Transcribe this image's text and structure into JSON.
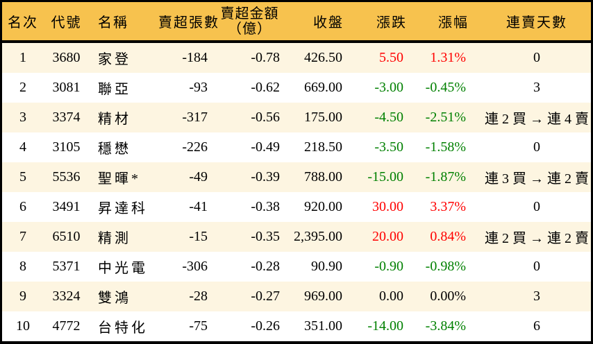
{
  "colors": {
    "header_bg": "#F7C24E",
    "stripe_bg": "#FDF5E1",
    "row_bg": "#FFFFFF",
    "border": "#000000",
    "text": "#000000",
    "up": "#FF0000",
    "down": "#008000",
    "flat": "#000000"
  },
  "chart_data": {
    "type": "table",
    "headers": [
      {
        "label": "名次"
      },
      {
        "label": "代號"
      },
      {
        "label": "名稱"
      },
      {
        "label": "賣超張數"
      },
      {
        "label": "賣超金額",
        "sub": "（億）"
      },
      {
        "label": "收盤"
      },
      {
        "label": "漲跌"
      },
      {
        "label": "漲幅"
      },
      {
        "label": "連賣天數"
      }
    ],
    "rows": [
      {
        "rank": "1",
        "code": "3680",
        "name": "家登",
        "sell_volume": "-184",
        "sell_amount": "-0.78",
        "close": "426.50",
        "change": "5.50",
        "change_pct": "1.31%",
        "streak": "0",
        "trend": "up"
      },
      {
        "rank": "2",
        "code": "3081",
        "name": "聯亞",
        "sell_volume": "-93",
        "sell_amount": "-0.62",
        "close": "669.00",
        "change": "-3.00",
        "change_pct": "-0.45%",
        "streak": "3",
        "trend": "down"
      },
      {
        "rank": "3",
        "code": "3374",
        "name": "精材",
        "sell_volume": "-317",
        "sell_amount": "-0.56",
        "close": "175.00",
        "change": "-4.50",
        "change_pct": "-2.51%",
        "streak": "連 2 買 → 連 4 賣",
        "trend": "down"
      },
      {
        "rank": "4",
        "code": "3105",
        "name": "穩懋",
        "sell_volume": "-226",
        "sell_amount": "-0.49",
        "close": "218.50",
        "change": "-3.50",
        "change_pct": "-1.58%",
        "streak": "0",
        "trend": "down"
      },
      {
        "rank": "5",
        "code": "5536",
        "name": "聖暉*",
        "sell_volume": "-49",
        "sell_amount": "-0.39",
        "close": "788.00",
        "change": "-15.00",
        "change_pct": "-1.87%",
        "streak": "連 3 買 → 連 2 賣",
        "trend": "down"
      },
      {
        "rank": "6",
        "code": "3491",
        "name": "昇達科",
        "sell_volume": "-41",
        "sell_amount": "-0.38",
        "close": "920.00",
        "change": "30.00",
        "change_pct": "3.37%",
        "streak": "0",
        "trend": "up"
      },
      {
        "rank": "7",
        "code": "6510",
        "name": "精測",
        "sell_volume": "-15",
        "sell_amount": "-0.35",
        "close": "2,395.00",
        "change": "20.00",
        "change_pct": "0.84%",
        "streak": "連 2 買 → 連 2 賣",
        "trend": "up"
      },
      {
        "rank": "8",
        "code": "5371",
        "name": "中光電",
        "sell_volume": "-306",
        "sell_amount": "-0.28",
        "close": "90.90",
        "change": "-0.90",
        "change_pct": "-0.98%",
        "streak": "0",
        "trend": "down"
      },
      {
        "rank": "9",
        "code": "3324",
        "name": "雙鴻",
        "sell_volume": "-28",
        "sell_amount": "-0.27",
        "close": "969.00",
        "change": "0.00",
        "change_pct": "0.00%",
        "streak": "3",
        "trend": "flat"
      },
      {
        "rank": "10",
        "code": "4772",
        "name": "台特化",
        "sell_volume": "-75",
        "sell_amount": "-0.26",
        "close": "351.00",
        "change": "-14.00",
        "change_pct": "-3.84%",
        "streak": "6",
        "trend": "down"
      }
    ]
  }
}
